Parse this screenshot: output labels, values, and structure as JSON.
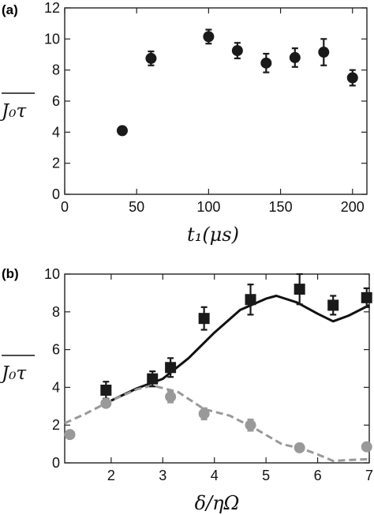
{
  "chart_data": [
    {
      "panel_label": "(a)",
      "type": "scatter",
      "xlabel": "t₁(μs)",
      "ylabel": "J₀τ",
      "xlim": [
        0,
        210
      ],
      "ylim": [
        0,
        12
      ],
      "x_ticks": [
        "0",
        "50",
        "100",
        "150",
        "200"
      ],
      "y_ticks": [
        "0",
        "2",
        "4",
        "6",
        "8",
        "10",
        "12"
      ],
      "series": [
        {
          "marker": "circle",
          "color": "#1a1a1a",
          "points": [
            {
              "x": 40,
              "y": 4.1,
              "err": 0.1
            },
            {
              "x": 60,
              "y": 8.75,
              "err": 0.45
            },
            {
              "x": 100,
              "y": 10.15,
              "err": 0.45
            },
            {
              "x": 120,
              "y": 9.25,
              "err": 0.5
            },
            {
              "x": 140,
              "y": 8.45,
              "err": 0.6
            },
            {
              "x": 160,
              "y": 8.8,
              "err": 0.6
            },
            {
              "x": 180,
              "y": 9.15,
              "err": 0.85
            },
            {
              "x": 200,
              "y": 7.5,
              "err": 0.5
            }
          ]
        }
      ]
    },
    {
      "panel_label": "(b)",
      "type": "scatter",
      "xlabel": "δ/ηΩ",
      "ylabel": "J₀τ",
      "xlim": [
        1.1,
        7.0
      ],
      "ylim": [
        0,
        10
      ],
      "x_ticks": [
        "2",
        "3",
        "4",
        "5",
        "6",
        "7"
      ],
      "y_ticks": [
        "0",
        "2",
        "4",
        "6",
        "8",
        "10"
      ],
      "series": [
        {
          "marker": "square",
          "color": "#1a1a1a",
          "points": [
            {
              "x": 1.9,
              "y": 3.85,
              "err": 0.45
            },
            {
              "x": 2.8,
              "y": 4.45,
              "err": 0.4
            },
            {
              "x": 3.15,
              "y": 5.05,
              "err": 0.5
            },
            {
              "x": 3.8,
              "y": 7.65,
              "err": 0.6
            },
            {
              "x": 4.7,
              "y": 8.65,
              "err": 0.8
            },
            {
              "x": 5.65,
              "y": 9.2,
              "err": 0.8
            },
            {
              "x": 6.3,
              "y": 8.35,
              "err": 0.5
            },
            {
              "x": 6.95,
              "y": 8.75,
              "err": 0.5
            }
          ]
        },
        {
          "marker": "circle",
          "color": "#999999",
          "points": [
            {
              "x": 1.2,
              "y": 1.5,
              "err": 0.1
            },
            {
              "x": 1.9,
              "y": 3.15,
              "err": 0.15
            },
            {
              "x": 3.15,
              "y": 3.5,
              "err": 0.3
            },
            {
              "x": 3.8,
              "y": 2.6,
              "err": 0.3
            },
            {
              "x": 4.7,
              "y": 2.0,
              "err": 0.3
            },
            {
              "x": 5.65,
              "y": 0.8,
              "err": 0.1
            },
            {
              "x": 6.95,
              "y": 0.85,
              "err": 0.1
            }
          ]
        }
      ],
      "curves": [
        {
          "style": "solid",
          "color": "#111111",
          "points": [
            [
              2.0,
              3.3
            ],
            [
              2.5,
              3.95
            ],
            [
              3.0,
              4.45
            ],
            [
              3.5,
              5.55
            ],
            [
              4.0,
              6.9
            ],
            [
              4.5,
              8.1
            ],
            [
              5.0,
              8.7
            ],
            [
              5.2,
              8.85
            ],
            [
              5.6,
              8.5
            ],
            [
              6.0,
              7.9
            ],
            [
              6.3,
              7.5
            ],
            [
              6.6,
              7.8
            ],
            [
              7.0,
              8.35
            ]
          ]
        },
        {
          "style": "dashed",
          "color": "#999999",
          "points": [
            [
              1.1,
              2.1
            ],
            [
              1.5,
              2.6
            ],
            [
              2.0,
              3.3
            ],
            [
              2.5,
              3.9
            ],
            [
              2.8,
              4.1
            ],
            [
              3.3,
              3.75
            ],
            [
              3.8,
              2.85
            ],
            [
              4.3,
              2.5
            ],
            [
              4.8,
              1.8
            ],
            [
              5.3,
              1.0
            ],
            [
              5.7,
              0.75
            ],
            [
              6.0,
              0.45
            ],
            [
              6.3,
              0.1
            ],
            [
              6.6,
              0.15
            ],
            [
              7.0,
              0.2
            ]
          ]
        }
      ]
    }
  ]
}
